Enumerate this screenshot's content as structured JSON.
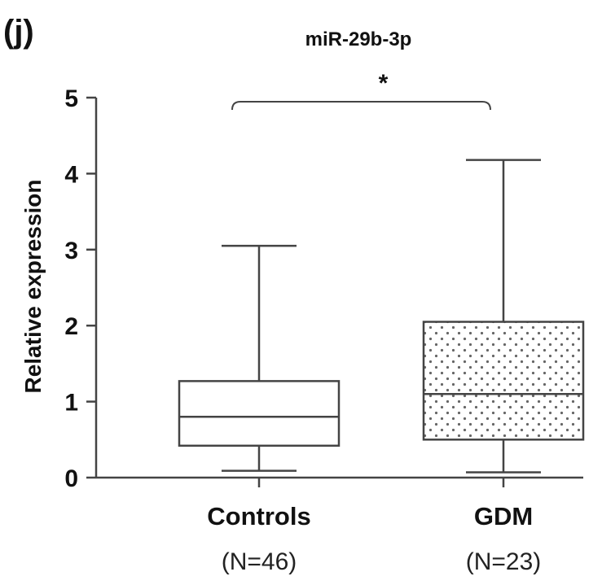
{
  "panel_label": "(j)",
  "chart_data": {
    "type": "box",
    "title": "miR-29b-3p",
    "xlabel": "",
    "ylabel": "Relative expression",
    "ylim": [
      0,
      5
    ],
    "yticks": [
      0,
      1,
      2,
      3,
      4,
      5
    ],
    "categories": [
      "Controls",
      "GDM"
    ],
    "sample_sizes": [
      "(N=46)",
      "(N=23)"
    ],
    "boxes": [
      {
        "category": "Controls",
        "min": 0.09,
        "q1": 0.42,
        "median": 0.8,
        "q3": 1.27,
        "max": 3.05,
        "fill": "none"
      },
      {
        "category": "GDM",
        "min": 0.07,
        "q1": 0.5,
        "median": 1.1,
        "q3": 2.05,
        "max": 4.18,
        "fill": "dotted"
      }
    ],
    "significance": {
      "from": "Controls",
      "to": "GDM",
      "label": "*"
    },
    "grid": false
  },
  "colors": {
    "line": "#444444",
    "text": "#111111",
    "dots": "#666666",
    "background": "#ffffff"
  }
}
